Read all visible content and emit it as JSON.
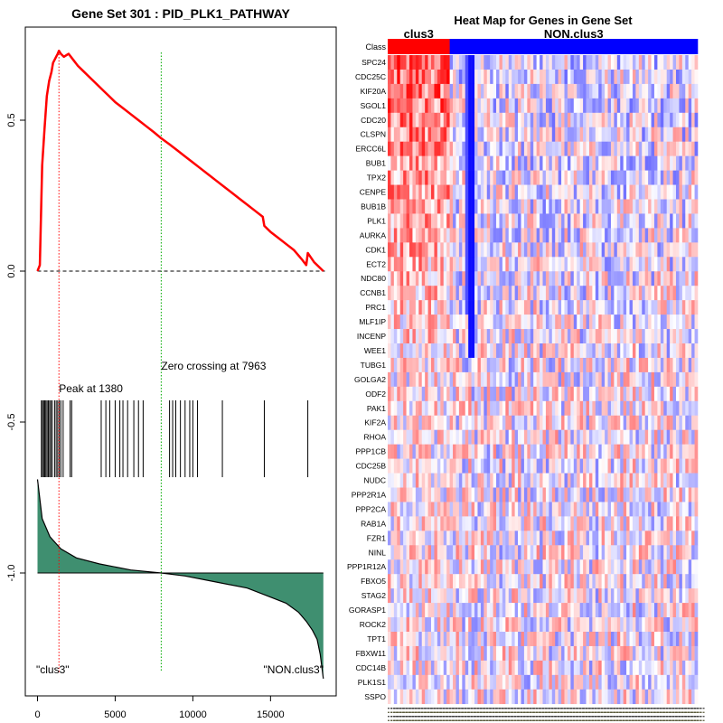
{
  "chart_data": [
    {
      "type": "line",
      "name": "gsea-enrichment-plot",
      "title": "Gene Set  301 : PID_PLK1_PATHWAY",
      "xlabel": "",
      "ylabel": "",
      "xlim": [
        0,
        18500
      ],
      "ylim": [
        -1.38,
        0.82
      ],
      "x_ticks": [
        0,
        5000,
        10000,
        15000
      ],
      "x_tick_labels": [
        "0",
        "5000",
        "10000",
        "15000"
      ],
      "y_ticks": [
        0.5,
        0.0,
        -0.5,
        -1.0
      ],
      "y_tick_labels": [
        "0.5",
        "0.0",
        "-0.5",
        "-1.0"
      ],
      "enrichment_series": {
        "name": "running enrichment score",
        "color": "#ff0000",
        "x": [
          0,
          150,
          300,
          450,
          600,
          750,
          900,
          1000,
          1100,
          1200,
          1300,
          1380,
          1500,
          1700,
          2000,
          2300,
          2600,
          3000,
          3400,
          3800,
          4200,
          4600,
          5000,
          5500,
          6000,
          6500,
          7000,
          7500,
          7963,
          8500,
          9000,
          9500,
          10000,
          10500,
          11000,
          11500,
          12000,
          12500,
          13000,
          13500,
          14000,
          14500,
          14600,
          15000,
          15500,
          16000,
          16500,
          17000,
          17300,
          17400,
          17800,
          18400
        ],
        "y": [
          0.0,
          0.02,
          0.35,
          0.47,
          0.58,
          0.63,
          0.66,
          0.69,
          0.7,
          0.71,
          0.72,
          0.73,
          0.72,
          0.71,
          0.72,
          0.7,
          0.68,
          0.66,
          0.64,
          0.62,
          0.6,
          0.58,
          0.56,
          0.54,
          0.52,
          0.5,
          0.48,
          0.46,
          0.44,
          0.42,
          0.4,
          0.38,
          0.36,
          0.34,
          0.32,
          0.3,
          0.28,
          0.26,
          0.24,
          0.22,
          0.2,
          0.18,
          0.15,
          0.13,
          0.11,
          0.09,
          0.07,
          0.04,
          0.02,
          0.06,
          0.03,
          0.0
        ]
      },
      "baseline_y": 0.0,
      "peak": {
        "x": 1380,
        "label": "Peak at 1380",
        "color": "#ff0000"
      },
      "zero_crossing": {
        "x": 7963,
        "label": "Zero crossing at 7963",
        "color": "#00aa00"
      },
      "hit_positions": [
        250,
        320,
        400,
        470,
        540,
        620,
        700,
        780,
        860,
        950,
        1100,
        1200,
        1300,
        1400,
        1500,
        1650,
        2100,
        2200,
        4100,
        4400,
        4650,
        5000,
        5300,
        5500,
        5800,
        6200,
        6500,
        6800,
        8500,
        8700,
        8900,
        9200,
        9500,
        9800,
        10000,
        10300,
        11900,
        14600,
        17400
      ],
      "ranked_metric": {
        "color": "#3f8f70",
        "baseline": -1.0,
        "x": [
          0,
          300,
          800,
          1500,
          2500,
          4000,
          6000,
          7963,
          9500,
          11500,
          13500,
          15000,
          16000,
          16800,
          17300,
          17700,
          18000,
          18200,
          18400
        ],
        "y": [
          -0.69,
          -0.82,
          -0.88,
          -0.92,
          -0.95,
          -0.97,
          -0.99,
          -1.0,
          -1.01,
          -1.03,
          -1.05,
          -1.08,
          -1.1,
          -1.13,
          -1.16,
          -1.19,
          -1.22,
          -1.27,
          -1.35
        ]
      },
      "class_labels": {
        "left": "\"clus3\"",
        "right": "\"NON.clus3\""
      }
    },
    {
      "type": "heatmap",
      "name": "gene-set-heatmap",
      "title": "Heat Map for Genes in Gene Set",
      "class_row_label": "Class",
      "groups": [
        {
          "name": "clus3",
          "color": "#ff0000",
          "columns": 20
        },
        {
          "name": "NON.clus3",
          "color": "#0000ff",
          "columns": 80
        }
      ],
      "genes": [
        "SPC24",
        "CDC25C",
        "KIF20A",
        "SGOL1",
        "CDC20",
        "CLSPN",
        "ERCC6L",
        "BUB1",
        "TPX2",
        "CENPE",
        "BUB1B",
        "PLK1",
        "AURKA",
        "CDK1",
        "ECT2",
        "NDC80",
        "CCNB1",
        "PRC1",
        "MLF1IP",
        "INCENP",
        "WEE1",
        "TUBG1",
        "GOLGA2",
        "ODF2",
        "PAK1",
        "KIF2A",
        "RHOA",
        "PPP1CB",
        "CDC25B",
        "NUDC",
        "PPP2R1A",
        "PPP2CA",
        "RAB1A",
        "FZR1",
        "NINL",
        "PPP1R12A",
        "FBXO5",
        "STAG2",
        "GORASP1",
        "ROCK2",
        "TPT1",
        "FBXW11",
        "CDC14B",
        "PLK1S1",
        "SSPO"
      ],
      "color_scale": {
        "low": "#0000ff",
        "mid": "#ffffff",
        "high": "#ff0000"
      }
    }
  ]
}
